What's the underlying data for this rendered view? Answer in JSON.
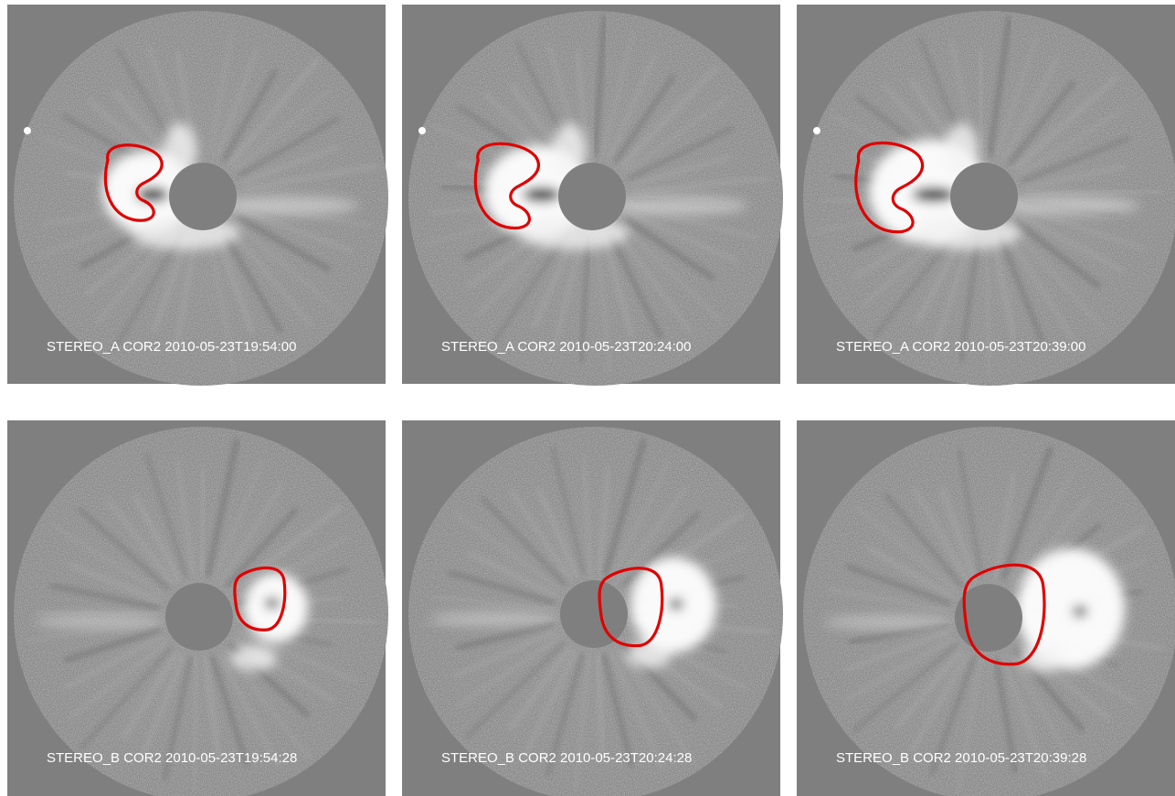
{
  "panels": [
    {
      "label": "STEREO_A COR2 2010-05-23T19:54:00"
    },
    {
      "label": "STEREO_A COR2 2010-05-23T20:24:00"
    },
    {
      "label": "STEREO_A COR2 2010-05-23T20:39:00"
    },
    {
      "label": "STEREO_B COR2 2010-05-23T19:54:28"
    },
    {
      "label": "STEREO_B COR2 2010-05-23T20:24:28"
    },
    {
      "label": "STEREO_B COR2 2010-05-23T20:39:28"
    }
  ]
}
